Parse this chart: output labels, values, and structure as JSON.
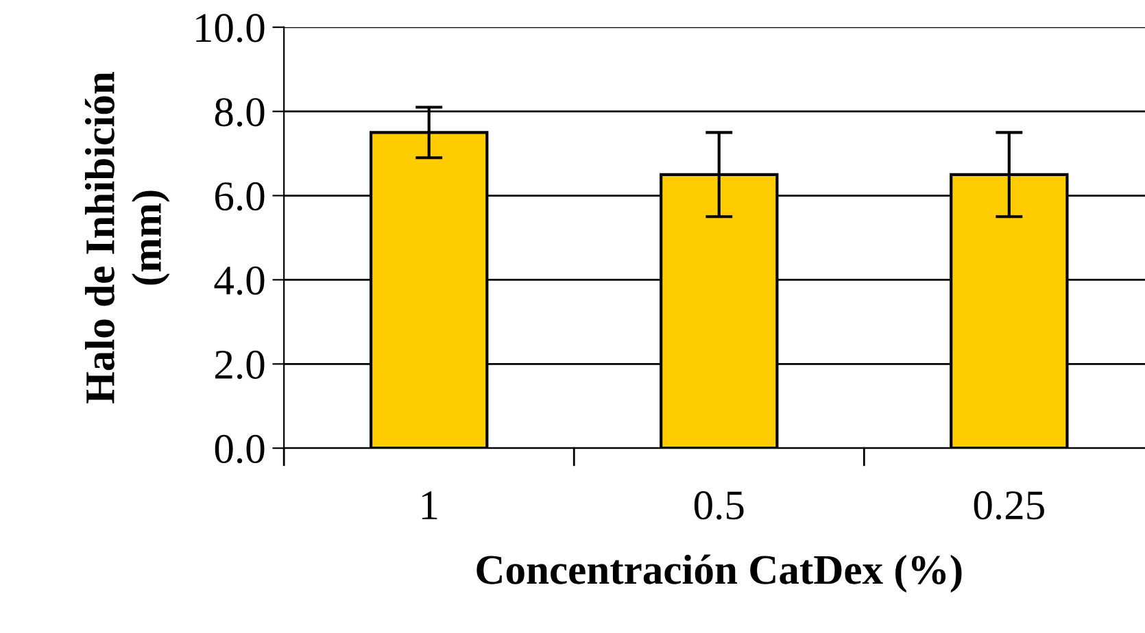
{
  "chart_data": {
    "type": "bar",
    "xlabel": "Concentración CatDex (%)",
    "ylabel": "Halo de Inhibición\n(mm)",
    "categories": [
      "1",
      "0.5",
      "0.25"
    ],
    "values": [
      7.5,
      6.5,
      6.5
    ],
    "errors": [
      0.6,
      1.0,
      1.0
    ],
    "color": "#ffcc00",
    "ylim": [
      0,
      10
    ],
    "yticks": [
      {
        "value": 0,
        "label": "0.0"
      },
      {
        "value": 2,
        "label": "2.0"
      },
      {
        "value": 4,
        "label": "4.0"
      },
      {
        "value": 6,
        "label": "6.0"
      },
      {
        "value": 8,
        "label": "8.0"
      },
      {
        "value": 10,
        "label": "10.0"
      }
    ],
    "grid": "y"
  }
}
